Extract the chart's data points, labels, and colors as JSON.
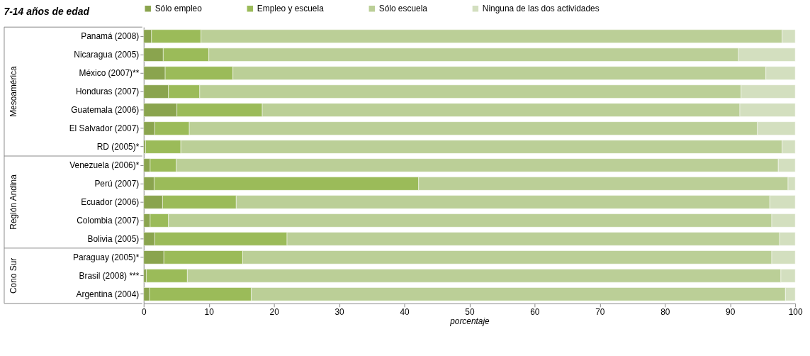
{
  "chart_data": {
    "type": "bar",
    "orientation": "horizontal",
    "stacked": true,
    "title": "7-14  años de edad",
    "xlabel": "porcentaje",
    "categories": [
      "Panamá (2008)",
      "Nicaragua (2005)",
      "México (2007)**",
      "Honduras (2007)",
      "Guatemala (2006)",
      "El Salvador (2007)",
      "RD (2005)*",
      "Venezuela (2006)*",
      "Perú (2007)",
      "Ecuador (2006)",
      "Colombia (2007)",
      "Bolivia (2005)",
      "Paraguay (2005)*",
      "Brasil (2008) ***",
      "Argentina (2004)"
    ],
    "series": [
      {
        "name": "Sólo empleo",
        "color": "#8aa44e",
        "values": [
          1.2,
          3.0,
          3.3,
          3.8,
          5.1,
          1.7,
          0.3,
          1.0,
          1.6,
          2.9,
          1.0,
          1.7,
          3.1,
          0.4,
          0.9
        ]
      },
      {
        "name": "Empleo y escuela",
        "color": "#9bbb59",
        "values": [
          7.6,
          7.0,
          10.4,
          4.8,
          13.1,
          5.3,
          5.4,
          4.0,
          40.6,
          11.3,
          2.8,
          20.3,
          12.1,
          6.3,
          15.6
        ]
      },
      {
        "name": "Sólo escuela",
        "color": "#bbcf97",
        "values": [
          89.2,
          81.3,
          81.8,
          83.1,
          73.3,
          87.2,
          92.3,
          92.4,
          56.7,
          81.9,
          92.6,
          75.6,
          81.2,
          91.1,
          82.0
        ]
      },
      {
        "name": "Ninguna de las dos actividades",
        "color": "#d3dfbf",
        "values": [
          2.0,
          8.7,
          4.5,
          8.3,
          8.5,
          5.8,
          2.0,
          2.6,
          1.1,
          3.9,
          3.6,
          2.4,
          3.6,
          2.2,
          1.5
        ]
      }
    ],
    "xlim": [
      0,
      100
    ],
    "xticks": [
      0,
      10,
      20,
      30,
      40,
      50,
      60,
      70,
      80,
      90,
      100
    ],
    "grid": false,
    "legend": "top",
    "annotations": [
      "Mesoamérica",
      "Región Andina",
      "Cono Sur"
    ]
  }
}
